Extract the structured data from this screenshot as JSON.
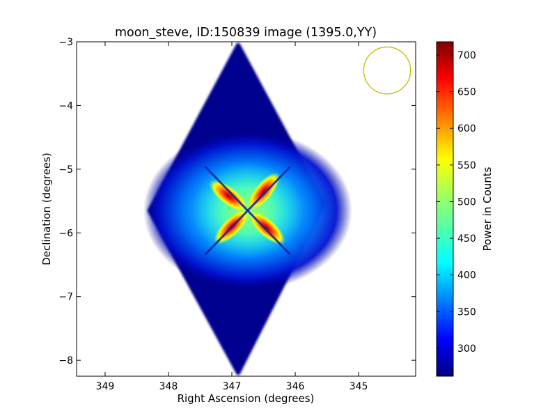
{
  "chart_data": {
    "type": "heatmap",
    "title": "moon_steve, ID:150839 image (1395.0,YY)",
    "xlabel": "Right Ascension (degrees)",
    "ylabel": "Declination (degrees)",
    "xlim": [
      349.45,
      344.1
    ],
    "ylim": [
      -8.25,
      -3.0
    ],
    "x_ticks": [
      349,
      348,
      347,
      346,
      345
    ],
    "x_tick_labels": [
      "349",
      "348",
      "347",
      "346",
      "345"
    ],
    "y_ticks": [
      -3,
      -4,
      -5,
      -6,
      -7,
      -8
    ],
    "y_tick_labels": [
      "−3",
      "−4",
      "−5",
      "−6",
      "−7",
      "−8"
    ],
    "colorbar": {
      "label": "Power in Counts",
      "min": 262,
      "max": 718,
      "ticks": [
        300,
        350,
        400,
        450,
        500,
        550,
        600,
        650,
        700
      ],
      "tick_labels": [
        "300",
        "350",
        "400",
        "450",
        "500",
        "550",
        "600",
        "650",
        "700"
      ],
      "colormap": "jet"
    },
    "image_region": {
      "shape": "diamond",
      "vertices_ra_dec": [
        [
          346.9,
          -3.05
        ],
        [
          345.55,
          -5.55
        ],
        [
          346.9,
          -8.2
        ],
        [
          348.3,
          -5.65
        ]
      ],
      "background_value": 265
    },
    "source": {
      "center_ra_dec": [
        346.75,
        -5.65
      ],
      "peak_value": 715,
      "lobes": [
        {
          "ra": 347.05,
          "dec": -5.42,
          "value": 705
        },
        {
          "ra": 346.5,
          "dec": -5.35,
          "value": 690
        },
        {
          "ra": 346.45,
          "dec": -5.92,
          "value": 710
        },
        {
          "ra": 347.0,
          "dec": -5.9,
          "value": 695
        }
      ]
    },
    "beam_circle": {
      "center_ra_dec": [
        344.55,
        -3.45
      ],
      "radius_deg": 0.37,
      "color": "#bfbf00"
    }
  }
}
